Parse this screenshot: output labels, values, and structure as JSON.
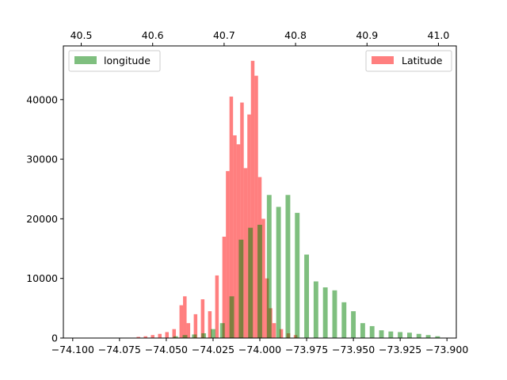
{
  "chart_data": {
    "type": "bar",
    "bottom_axis": {
      "ticks": [
        -74.1,
        -74.075,
        -74.05,
        -74.025,
        -74.0,
        -73.975,
        -73.95,
        -73.925,
        -73.9
      ],
      "tick_labels": [
        "−74.100",
        "−74.075",
        "−74.050",
        "−74.025",
        "−74.000",
        "−73.975",
        "−73.950",
        "−73.925",
        "−73.900"
      ],
      "range": [
        -74.105,
        -73.895
      ]
    },
    "top_axis": {
      "ticks": [
        40.5,
        40.6,
        40.7,
        40.8,
        40.9,
        41.0
      ],
      "tick_labels": [
        "40.5",
        "40.6",
        "40.7",
        "40.8",
        "40.9",
        "41.0"
      ],
      "range": [
        40.475,
        41.025
      ]
    },
    "left_axis": {
      "ticks": [
        0,
        10000,
        20000,
        30000,
        40000
      ],
      "tick_labels": [
        "0",
        "10000",
        "20000",
        "30000",
        "40000"
      ],
      "range": [
        0,
        49000
      ]
    },
    "series": [
      {
        "name": "longitude",
        "color": "#008000",
        "alpha": 0.5,
        "axis": "bottom",
        "bin_start": -74.1,
        "bin_width": 0.002,
        "values": [
          0,
          0,
          0,
          0,
          0,
          0,
          0,
          0,
          0,
          0,
          0,
          0,
          0,
          0,
          0,
          0,
          0,
          0,
          0,
          0,
          0,
          0,
          0,
          0,
          0,
          0,
          0,
          0,
          0,
          0,
          0,
          0,
          0,
          0,
          0,
          0,
          0,
          0,
          0,
          0,
          0,
          0,
          0,
          0,
          0,
          0,
          0,
          0,
          0,
          0,
          0,
          0,
          0,
          0,
          0,
          0,
          0,
          0,
          0,
          0,
          0,
          0,
          0,
          0,
          0,
          0,
          0,
          0,
          0,
          0,
          0,
          0,
          0,
          0,
          0,
          0,
          0,
          0,
          0,
          0,
          0,
          0,
          0,
          0,
          0,
          0,
          0,
          0,
          0,
          0,
          0,
          0,
          0,
          0,
          0,
          0,
          0,
          0,
          0,
          0,
          0,
          0,
          0,
          0,
          0,
          0,
          0,
          0,
          0,
          0,
          0,
          0,
          0,
          0,
          0,
          0,
          0,
          0,
          0,
          0,
          0,
          0,
          0,
          0,
          0,
          0,
          0,
          0,
          0,
          0,
          0,
          0,
          0,
          0,
          0,
          0,
          0,
          0,
          0,
          0,
          0,
          0,
          0,
          0,
          0,
          0,
          0,
          0,
          0,
          0,
          0,
          0,
          0,
          0,
          0,
          0,
          0,
          0,
          0,
          0,
          0,
          0,
          0,
          0,
          0,
          0,
          0,
          0,
          0,
          0,
          0,
          0,
          0,
          0,
          0,
          0,
          0,
          0,
          0,
          0,
          0,
          0,
          0,
          0,
          0,
          0,
          0,
          0,
          0,
          0,
          0,
          0,
          0,
          0,
          0,
          0,
          0,
          0,
          0,
          0,
          0,
          0,
          0
        ],
        "bins": [
          {
            "x": -74.045,
            "v": 300
          },
          {
            "x": -74.04,
            "v": 500
          },
          {
            "x": -74.035,
            "v": 600
          },
          {
            "x": -74.03,
            "v": 800
          },
          {
            "x": -74.025,
            "v": 1500
          },
          {
            "x": -74.02,
            "v": 2500
          },
          {
            "x": -74.015,
            "v": 7000
          },
          {
            "x": -74.01,
            "v": 16500
          },
          {
            "x": -74.005,
            "v": 18500
          },
          {
            "x": -74.0,
            "v": 19000
          },
          {
            "x": -73.995,
            "v": 24000
          },
          {
            "x": -73.99,
            "v": 22000
          },
          {
            "x": -73.985,
            "v": 24000
          },
          {
            "x": -73.98,
            "v": 21000
          },
          {
            "x": -73.975,
            "v": 14000
          },
          {
            "x": -73.97,
            "v": 9500
          },
          {
            "x": -73.965,
            "v": 8500
          },
          {
            "x": -73.96,
            "v": 8000
          },
          {
            "x": -73.955,
            "v": 6000
          },
          {
            "x": -73.95,
            "v": 4500
          },
          {
            "x": -73.945,
            "v": 2500
          },
          {
            "x": -73.94,
            "v": 2000
          },
          {
            "x": -73.935,
            "v": 1300
          },
          {
            "x": -73.93,
            "v": 1100
          },
          {
            "x": -73.925,
            "v": 1000
          },
          {
            "x": -73.92,
            "v": 900
          },
          {
            "x": -73.915,
            "v": 700
          },
          {
            "x": -73.91,
            "v": 500
          },
          {
            "x": -73.905,
            "v": 300
          }
        ]
      },
      {
        "name": "Latitude",
        "color": "#ff0000",
        "alpha": 0.5,
        "axis": "top",
        "bins": [
          {
            "x": 40.58,
            "v": 200
          },
          {
            "x": 40.59,
            "v": 300
          },
          {
            "x": 40.6,
            "v": 500
          },
          {
            "x": 40.61,
            "v": 700
          },
          {
            "x": 40.62,
            "v": 1000
          },
          {
            "x": 40.63,
            "v": 1500
          },
          {
            "x": 40.64,
            "v": 5500
          },
          {
            "x": 40.645,
            "v": 7000
          },
          {
            "x": 40.65,
            "v": 2500
          },
          {
            "x": 40.66,
            "v": 4000
          },
          {
            "x": 40.67,
            "v": 6500
          },
          {
            "x": 40.68,
            "v": 4500
          },
          {
            "x": 40.69,
            "v": 10500
          },
          {
            "x": 40.7,
            "v": 17000
          },
          {
            "x": 40.705,
            "v": 28000
          },
          {
            "x": 40.71,
            "v": 40500
          },
          {
            "x": 40.715,
            "v": 34000
          },
          {
            "x": 40.72,
            "v": 32500
          },
          {
            "x": 40.725,
            "v": 39500
          },
          {
            "x": 40.73,
            "v": 28500
          },
          {
            "x": 40.735,
            "v": 37500
          },
          {
            "x": 40.74,
            "v": 46500
          },
          {
            "x": 40.745,
            "v": 44000
          },
          {
            "x": 40.75,
            "v": 27000
          },
          {
            "x": 40.755,
            "v": 20000
          },
          {
            "x": 40.76,
            "v": 10000
          },
          {
            "x": 40.765,
            "v": 5000
          },
          {
            "x": 40.77,
            "v": 2500
          },
          {
            "x": 40.78,
            "v": 1500
          },
          {
            "x": 40.79,
            "v": 800
          },
          {
            "x": 40.8,
            "v": 500
          }
        ]
      }
    ],
    "legend": {
      "longitude": {
        "label": "longitude",
        "placement": "top-left"
      },
      "latitude": {
        "label": "Latitude",
        "placement": "top-right"
      }
    }
  }
}
